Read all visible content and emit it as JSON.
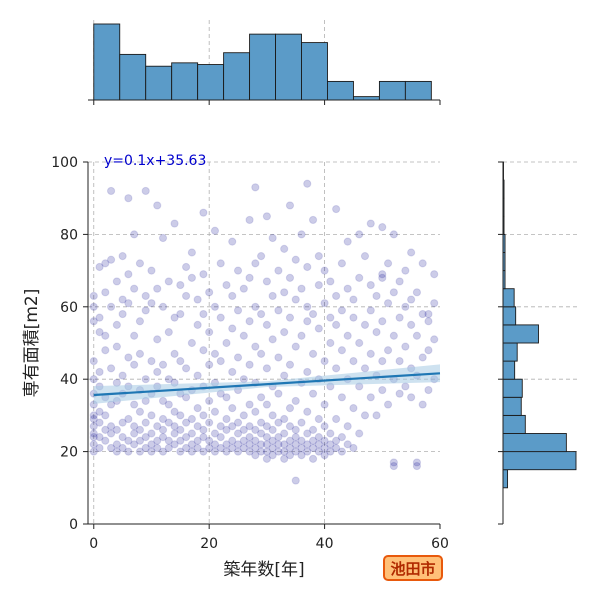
{
  "chart_data": {
    "type": "scatter",
    "title": "",
    "xlabel": "築年数[年]",
    "ylabel": "専有面積[m2]",
    "xlim": [
      -1,
      60
    ],
    "ylim": [
      0,
      100
    ],
    "xticks": [
      "0",
      "20",
      "40",
      "60"
    ],
    "yticks": [
      "0",
      "20",
      "40",
      "60",
      "80",
      "100"
    ],
    "grid": true,
    "colors": {
      "points": "#00008b",
      "regression_line": "#1f77b4",
      "confidence_band": "#a6cbe3",
      "histogram_fill": "#5b9bc8",
      "equation_text": "#0000cd"
    },
    "regression": {
      "label": "y=0.1x+35.63",
      "slope": 0.1,
      "intercept": 35.63
    },
    "points": [
      [
        0,
        20
      ],
      [
        0,
        22
      ],
      [
        0,
        24
      ],
      [
        0,
        25
      ],
      [
        0,
        27
      ],
      [
        0,
        29
      ],
      [
        0,
        30
      ],
      [
        0,
        33
      ],
      [
        0,
        36
      ],
      [
        0,
        40
      ],
      [
        0,
        45
      ],
      [
        0,
        56
      ],
      [
        0,
        60
      ],
      [
        0,
        63
      ],
      [
        1,
        21
      ],
      [
        1,
        24
      ],
      [
        1,
        28
      ],
      [
        1,
        31
      ],
      [
        1,
        38
      ],
      [
        1,
        42
      ],
      [
        1,
        53
      ],
      [
        1,
        57
      ],
      [
        1,
        71
      ],
      [
        2,
        23
      ],
      [
        2,
        26
      ],
      [
        2,
        30
      ],
      [
        2,
        35
      ],
      [
        2,
        48
      ],
      [
        2,
        52
      ],
      [
        2,
        64
      ],
      [
        2,
        72
      ],
      [
        3,
        21
      ],
      [
        3,
        25
      ],
      [
        3,
        27
      ],
      [
        3,
        33
      ],
      [
        3,
        43
      ],
      [
        3,
        60
      ],
      [
        3,
        73
      ],
      [
        3,
        92
      ],
      [
        4,
        20
      ],
      [
        4,
        22
      ],
      [
        4,
        26
      ],
      [
        4,
        34
      ],
      [
        4,
        39
      ],
      [
        4,
        49
      ],
      [
        4,
        55
      ],
      [
        4,
        67
      ],
      [
        5,
        21
      ],
      [
        5,
        24
      ],
      [
        5,
        28
      ],
      [
        5,
        36
      ],
      [
        5,
        41
      ],
      [
        5,
        58
      ],
      [
        5,
        62
      ],
      [
        5,
        74
      ],
      [
        6,
        20
      ],
      [
        6,
        23
      ],
      [
        6,
        29
      ],
      [
        6,
        38
      ],
      [
        6,
        46
      ],
      [
        6,
        61
      ],
      [
        6,
        69
      ],
      [
        6,
        90
      ],
      [
        7,
        22
      ],
      [
        7,
        25
      ],
      [
        7,
        27
      ],
      [
        7,
        33
      ],
      [
        7,
        44
      ],
      [
        7,
        52
      ],
      [
        7,
        65
      ],
      [
        7,
        80
      ],
      [
        8,
        20
      ],
      [
        8,
        23
      ],
      [
        8,
        26
      ],
      [
        8,
        31
      ],
      [
        8,
        37
      ],
      [
        8,
        47
      ],
      [
        8,
        56
      ],
      [
        8,
        72
      ],
      [
        9,
        21
      ],
      [
        9,
        24
      ],
      [
        9,
        28
      ],
      [
        9,
        34
      ],
      [
        9,
        40
      ],
      [
        9,
        59
      ],
      [
        9,
        63
      ],
      [
        9,
        92
      ],
      [
        10,
        20
      ],
      [
        10,
        22
      ],
      [
        10,
        25
      ],
      [
        10,
        30
      ],
      [
        10,
        36
      ],
      [
        10,
        45
      ],
      [
        10,
        61
      ],
      [
        10,
        70
      ],
      [
        11,
        21
      ],
      [
        11,
        23
      ],
      [
        11,
        27
      ],
      [
        11,
        38
      ],
      [
        11,
        42
      ],
      [
        11,
        51
      ],
      [
        11,
        65
      ],
      [
        11,
        88
      ],
      [
        12,
        20
      ],
      [
        12,
        24
      ],
      [
        12,
        26
      ],
      [
        12,
        29
      ],
      [
        12,
        34
      ],
      [
        12,
        44
      ],
      [
        12,
        60
      ],
      [
        12,
        79
      ],
      [
        13,
        21
      ],
      [
        13,
        23
      ],
      [
        13,
        28
      ],
      [
        13,
        33
      ],
      [
        13,
        40
      ],
      [
        13,
        53
      ],
      [
        13,
        67
      ],
      [
        14,
        22
      ],
      [
        14,
        25
      ],
      [
        14,
        27
      ],
      [
        14,
        31
      ],
      [
        14,
        39
      ],
      [
        14,
        47
      ],
      [
        14,
        57
      ],
      [
        14,
        83
      ],
      [
        15,
        20
      ],
      [
        15,
        23
      ],
      [
        15,
        26
      ],
      [
        15,
        30
      ],
      [
        15,
        36
      ],
      [
        15,
        45
      ],
      [
        15,
        58
      ],
      [
        15,
        66
      ],
      [
        16,
        21
      ],
      [
        16,
        24
      ],
      [
        16,
        28
      ],
      [
        16,
        35
      ],
      [
        16,
        43
      ],
      [
        16,
        63
      ],
      [
        16,
        71
      ],
      [
        17,
        20
      ],
      [
        17,
        22
      ],
      [
        17,
        25
      ],
      [
        17,
        29
      ],
      [
        17,
        37
      ],
      [
        17,
        50
      ],
      [
        17,
        68
      ],
      [
        17,
        75
      ],
      [
        18,
        21
      ],
      [
        18,
        23
      ],
      [
        18,
        27
      ],
      [
        18,
        32
      ],
      [
        18,
        41
      ],
      [
        18,
        55
      ],
      [
        18,
        62
      ],
      [
        19,
        20
      ],
      [
        19,
        24
      ],
      [
        19,
        26
      ],
      [
        19,
        30
      ],
      [
        19,
        38
      ],
      [
        19,
        48
      ],
      [
        19,
        58
      ],
      [
        19,
        69
      ],
      [
        19,
        86
      ],
      [
        20,
        21
      ],
      [
        20,
        23
      ],
      [
        20,
        28
      ],
      [
        20,
        34
      ],
      [
        20,
        44
      ],
      [
        20,
        53
      ],
      [
        20,
        64
      ],
      [
        21,
        20
      ],
      [
        21,
        22
      ],
      [
        21,
        25
      ],
      [
        21,
        31
      ],
      [
        21,
        39
      ],
      [
        21,
        47
      ],
      [
        21,
        60
      ],
      [
        21,
        81
      ],
      [
        22,
        21
      ],
      [
        22,
        24
      ],
      [
        22,
        27
      ],
      [
        22,
        36
      ],
      [
        22,
        45
      ],
      [
        22,
        57
      ],
      [
        22,
        72
      ],
      [
        23,
        20
      ],
      [
        23,
        22
      ],
      [
        23,
        26
      ],
      [
        23,
        29
      ],
      [
        23,
        35
      ],
      [
        23,
        50
      ],
      [
        23,
        66
      ],
      [
        24,
        21
      ],
      [
        24,
        23
      ],
      [
        24,
        27
      ],
      [
        24,
        32
      ],
      [
        24,
        42
      ],
      [
        24,
        54
      ],
      [
        24,
        63
      ],
      [
        24,
        78
      ],
      [
        25,
        20
      ],
      [
        25,
        22
      ],
      [
        25,
        25
      ],
      [
        25,
        28
      ],
      [
        25,
        37
      ],
      [
        25,
        46
      ],
      [
        25,
        59
      ],
      [
        25,
        70
      ],
      [
        26,
        21
      ],
      [
        26,
        23
      ],
      [
        26,
        26
      ],
      [
        26,
        30
      ],
      [
        26,
        40
      ],
      [
        26,
        52
      ],
      [
        26,
        65
      ],
      [
        27,
        20
      ],
      [
        27,
        22
      ],
      [
        27,
        24
      ],
      [
        27,
        27
      ],
      [
        27,
        33
      ],
      [
        27,
        44
      ],
      [
        27,
        56
      ],
      [
        27,
        68
      ],
      [
        27,
        84
      ],
      [
        28,
        19
      ],
      [
        28,
        21
      ],
      [
        28,
        23
      ],
      [
        28,
        26
      ],
      [
        28,
        31
      ],
      [
        28,
        39
      ],
      [
        28,
        49
      ],
      [
        28,
        60
      ],
      [
        28,
        72
      ],
      [
        28,
        93
      ],
      [
        29,
        20
      ],
      [
        29,
        22
      ],
      [
        29,
        25
      ],
      [
        29,
        28
      ],
      [
        29,
        35
      ],
      [
        29,
        47
      ],
      [
        29,
        58
      ],
      [
        29,
        74
      ],
      [
        30,
        18
      ],
      [
        30,
        20
      ],
      [
        30,
        22
      ],
      [
        30,
        24
      ],
      [
        30,
        27
      ],
      [
        30,
        33
      ],
      [
        30,
        43
      ],
      [
        30,
        55
      ],
      [
        30,
        67
      ],
      [
        30,
        85
      ],
      [
        31,
        19
      ],
      [
        31,
        21
      ],
      [
        31,
        23
      ],
      [
        31,
        26
      ],
      [
        31,
        30
      ],
      [
        31,
        38
      ],
      [
        31,
        51
      ],
      [
        31,
        63
      ],
      [
        31,
        79
      ],
      [
        32,
        20
      ],
      [
        32,
        22
      ],
      [
        32,
        24
      ],
      [
        32,
        28
      ],
      [
        32,
        36
      ],
      [
        32,
        46
      ],
      [
        32,
        59
      ],
      [
        32,
        70
      ],
      [
        33,
        18
      ],
      [
        33,
        20
      ],
      [
        33,
        22
      ],
      [
        33,
        25
      ],
      [
        33,
        29
      ],
      [
        33,
        41
      ],
      [
        33,
        53
      ],
      [
        33,
        64
      ],
      [
        33,
        76
      ],
      [
        34,
        19
      ],
      [
        34,
        21
      ],
      [
        34,
        23
      ],
      [
        34,
        27
      ],
      [
        34,
        32
      ],
      [
        34,
        44
      ],
      [
        34,
        57
      ],
      [
        34,
        68
      ],
      [
        34,
        88
      ],
      [
        35,
        20
      ],
      [
        35,
        22
      ],
      [
        35,
        24
      ],
      [
        35,
        26
      ],
      [
        35,
        34
      ],
      [
        35,
        49
      ],
      [
        35,
        62
      ],
      [
        35,
        73
      ],
      [
        35,
        12
      ],
      [
        36,
        19
      ],
      [
        36,
        21
      ],
      [
        36,
        23
      ],
      [
        36,
        28
      ],
      [
        36,
        39
      ],
      [
        36,
        52
      ],
      [
        36,
        65
      ],
      [
        36,
        80
      ],
      [
        37,
        20
      ],
      [
        37,
        22
      ],
      [
        37,
        25
      ],
      [
        37,
        31
      ],
      [
        37,
        42
      ],
      [
        37,
        56
      ],
      [
        37,
        60
      ],
      [
        37,
        71
      ],
      [
        37,
        94
      ],
      [
        38,
        18
      ],
      [
        38,
        21
      ],
      [
        38,
        23
      ],
      [
        38,
        26
      ],
      [
        38,
        36
      ],
      [
        38,
        47
      ],
      [
        38,
        58
      ],
      [
        38,
        84
      ],
      [
        39,
        20
      ],
      [
        39,
        22
      ],
      [
        39,
        24
      ],
      [
        39,
        29
      ],
      [
        39,
        40
      ],
      [
        39,
        54
      ],
      [
        39,
        66
      ],
      [
        39,
        74
      ],
      [
        40,
        19
      ],
      [
        40,
        21
      ],
      [
        40,
        23
      ],
      [
        40,
        27
      ],
      [
        40,
        33
      ],
      [
        40,
        45
      ],
      [
        40,
        61
      ],
      [
        40,
        70
      ],
      [
        41,
        20
      ],
      [
        41,
        22
      ],
      [
        41,
        25
      ],
      [
        41,
        38
      ],
      [
        41,
        50
      ],
      [
        41,
        57
      ],
      [
        41,
        67
      ],
      [
        42,
        21
      ],
      [
        42,
        23
      ],
      [
        42,
        29
      ],
      [
        42,
        43
      ],
      [
        42,
        55
      ],
      [
        42,
        63
      ],
      [
        42,
        87
      ],
      [
        43,
        20
      ],
      [
        43,
        24
      ],
      [
        43,
        35
      ],
      [
        43,
        48
      ],
      [
        43,
        59
      ],
      [
        43,
        72
      ],
      [
        44,
        22
      ],
      [
        44,
        27
      ],
      [
        44,
        40
      ],
      [
        44,
        52
      ],
      [
        44,
        65
      ],
      [
        44,
        78
      ],
      [
        45,
        21
      ],
      [
        45,
        32
      ],
      [
        45,
        45
      ],
      [
        45,
        57
      ],
      [
        45,
        62
      ],
      [
        46,
        25
      ],
      [
        46,
        38
      ],
      [
        46,
        50
      ],
      [
        46,
        68
      ],
      [
        46,
        80
      ],
      [
        47,
        30
      ],
      [
        47,
        43
      ],
      [
        47,
        55
      ],
      [
        47,
        74
      ],
      [
        48,
        35
      ],
      [
        48,
        47
      ],
      [
        48,
        59
      ],
      [
        48,
        66
      ],
      [
        48,
        83
      ],
      [
        49,
        30
      ],
      [
        49,
        41
      ],
      [
        49,
        53
      ],
      [
        49,
        63
      ],
      [
        50,
        37
      ],
      [
        50,
        45
      ],
      [
        50,
        56
      ],
      [
        50,
        68
      ],
      [
        50,
        69
      ],
      [
        50,
        82
      ],
      [
        51,
        33
      ],
      [
        51,
        48
      ],
      [
        51,
        61
      ],
      [
        51,
        72
      ],
      [
        52,
        17
      ],
      [
        52,
        16
      ],
      [
        52,
        40
      ],
      [
        52,
        52
      ],
      [
        52,
        64
      ],
      [
        52,
        80
      ],
      [
        53,
        36
      ],
      [
        53,
        45
      ],
      [
        53,
        57
      ],
      [
        53,
        67
      ],
      [
        54,
        38
      ],
      [
        54,
        49
      ],
      [
        54,
        60
      ],
      [
        54,
        70
      ],
      [
        55,
        35
      ],
      [
        55,
        43
      ],
      [
        55,
        55
      ],
      [
        55,
        62
      ],
      [
        55,
        75
      ],
      [
        56,
        16
      ],
      [
        56,
        17
      ],
      [
        56,
        41
      ],
      [
        56,
        52
      ],
      [
        56,
        64
      ],
      [
        57,
        33
      ],
      [
        57,
        46
      ],
      [
        57,
        58
      ],
      [
        57,
        72
      ],
      [
        58,
        37
      ],
      [
        58,
        48
      ],
      [
        58,
        56
      ],
      [
        58,
        58
      ],
      [
        59,
        40
      ],
      [
        59,
        51
      ],
      [
        59,
        61
      ],
      [
        59,
        69
      ]
    ],
    "hist_x": {
      "bin_edges": [
        0,
        4.5,
        9,
        13.5,
        18,
        22.5,
        27,
        31.5,
        36,
        40.5,
        45,
        49.5,
        54,
        58.5
      ],
      "counts": [
        45,
        27,
        20,
        22,
        21,
        28,
        39,
        39,
        34,
        11,
        2,
        11,
        11
      ]
    },
    "hist_y": {
      "bin_edges": [
        10,
        15,
        20,
        25,
        30,
        35,
        40,
        45,
        50,
        55,
        60,
        65,
        70,
        75,
        80,
        85,
        90,
        95,
        100
      ],
      "counts": [
        9,
        144,
        125,
        44,
        36,
        38,
        23,
        28,
        70,
        25,
        22,
        4,
        4,
        4,
        2,
        2,
        2,
        1
      ]
    }
  },
  "badge": {
    "label": "池田市",
    "colors": {
      "fill": "#ffc078",
      "border": "#e8590c",
      "text": "#b02a00"
    }
  }
}
